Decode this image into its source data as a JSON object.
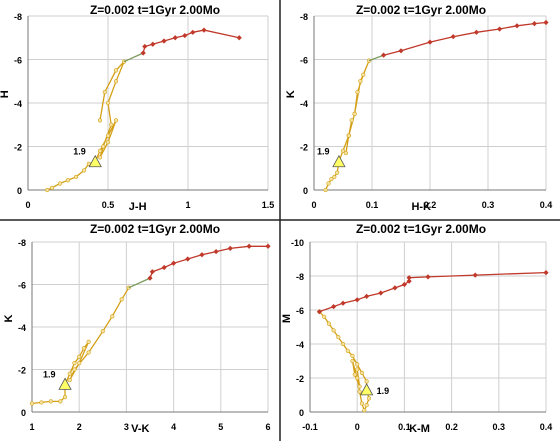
{
  "colors": {
    "track": "#d4a017",
    "track_fill": "#f4e3a0",
    "red": "#c0392b",
    "green": "#7a9a5a",
    "marker": "#ffff66"
  },
  "chart_data": [
    {
      "type": "line",
      "title": "Z=0.002  t=1Gyr  2.00Mo",
      "xlabel": "J-H",
      "ylabel": "H",
      "xlim": [
        0,
        1.5
      ],
      "ylim": [
        0,
        -8
      ],
      "xticks": [
        "0",
        "0.5",
        "1",
        "1.5"
      ],
      "yticks": [
        "0",
        "-2",
        "-4",
        "-6",
        "-8"
      ],
      "annotation": "1.9",
      "marker": [
        0.42,
        -1.3
      ],
      "series": [
        {
          "color": "track",
          "points": [
            [
              0.12,
              0
            ],
            [
              0.15,
              -0.1
            ],
            [
              0.2,
              -0.3
            ],
            [
              0.25,
              -0.45
            ],
            [
              0.3,
              -0.6
            ],
            [
              0.35,
              -0.9
            ],
            [
              0.38,
              -1.2
            ],
            [
              0.42,
              -1.3
            ],
            [
              0.45,
              -1.8
            ],
            [
              0.5,
              -2.5
            ],
            [
              0.55,
              -3.2
            ],
            [
              0.5,
              -2.2
            ],
            [
              0.45,
              -1.5
            ],
            [
              0.47,
              -2.0
            ],
            [
              0.52,
              -3.0
            ],
            [
              0.5,
              -4.0
            ],
            [
              0.55,
              -5.0
            ],
            [
              0.6,
              -5.9
            ],
            [
              0.55,
              -5.5
            ],
            [
              0.48,
              -4.5
            ],
            [
              0.45,
              -3.2
            ]
          ]
        },
        {
          "color": "green",
          "points": [
            [
              0.6,
              -5.9
            ],
            [
              0.72,
              -6.3
            ]
          ]
        },
        {
          "color": "red",
          "points": [
            [
              0.72,
              -6.3
            ],
            [
              0.73,
              -6.6
            ],
            [
              0.78,
              -6.7
            ],
            [
              0.85,
              -6.85
            ],
            [
              0.92,
              -7.0
            ],
            [
              0.98,
              -7.1
            ],
            [
              1.03,
              -7.25
            ],
            [
              1.1,
              -7.35
            ],
            [
              1.32,
              -7.0
            ]
          ]
        }
      ]
    },
    {
      "type": "line",
      "title": "Z=0.002  t=1Gyr  2.00Mo",
      "xlabel": "H-K",
      "ylabel": "K",
      "xlim": [
        0,
        0.4
      ],
      "ylim": [
        0,
        -8
      ],
      "xticks": [
        "0",
        "0.1",
        "0.2",
        "0.3",
        "0.4"
      ],
      "yticks": [
        "0",
        "-2",
        "-4",
        "-6",
        "-8"
      ],
      "annotation": "1.9",
      "marker": [
        0.043,
        -1.3
      ],
      "series": [
        {
          "color": "track",
          "points": [
            [
              0.02,
              0
            ],
            [
              0.025,
              -0.3
            ],
            [
              0.03,
              -0.5
            ],
            [
              0.035,
              -0.6
            ],
            [
              0.04,
              -0.8
            ],
            [
              0.043,
              -1.3
            ],
            [
              0.05,
              -1.8
            ],
            [
              0.06,
              -2.5
            ],
            [
              0.065,
              -3.2
            ],
            [
              0.06,
              -2.5
            ],
            [
              0.055,
              -1.7
            ],
            [
              0.06,
              -2.5
            ],
            [
              0.07,
              -3.5
            ],
            [
              0.075,
              -4.5
            ],
            [
              0.085,
              -5.3
            ],
            [
              0.095,
              -5.95
            ],
            [
              0.08,
              -5.0
            ],
            [
              0.07,
              -3.5
            ]
          ]
        },
        {
          "color": "green",
          "points": [
            [
              0.095,
              -5.95
            ],
            [
              0.12,
              -6.2
            ]
          ]
        },
        {
          "color": "red",
          "points": [
            [
              0.12,
              -6.2
            ],
            [
              0.15,
              -6.4
            ],
            [
              0.2,
              -6.8
            ],
            [
              0.24,
              -7.05
            ],
            [
              0.28,
              -7.25
            ],
            [
              0.32,
              -7.4
            ],
            [
              0.35,
              -7.55
            ],
            [
              0.38,
              -7.65
            ],
            [
              0.4,
              -7.7
            ]
          ]
        }
      ]
    },
    {
      "type": "line",
      "title": "Z=0.002  t=1Gyr  2.00Mo",
      "xlabel": "V-K",
      "ylabel": "K",
      "xlim": [
        1,
        6
      ],
      "ylim": [
        0,
        -8
      ],
      "xticks": [
        "1",
        "2",
        "3",
        "4",
        "5",
        "6"
      ],
      "yticks": [
        "0",
        "-2",
        "-4",
        "-6",
        "-8"
      ],
      "annotation": "1.9",
      "marker": [
        1.7,
        -1.3
      ],
      "series": [
        {
          "color": "track",
          "points": [
            [
              1.0,
              -0.4
            ],
            [
              1.2,
              -0.45
            ],
            [
              1.4,
              -0.5
            ],
            [
              1.6,
              -0.5
            ],
            [
              1.7,
              -0.7
            ],
            [
              1.7,
              -1.3
            ],
            [
              1.8,
              -1.8
            ],
            [
              1.9,
              -2.3
            ],
            [
              2.0,
              -2.6
            ],
            [
              2.1,
              -3.0
            ],
            [
              2.2,
              -3.3
            ],
            [
              2.0,
              -2.3
            ],
            [
              1.8,
              -1.5
            ],
            [
              1.9,
              -2.0
            ],
            [
              2.2,
              -2.8
            ],
            [
              2.5,
              -3.8
            ],
            [
              2.7,
              -4.5
            ],
            [
              2.9,
              -5.3
            ],
            [
              3.05,
              -5.85
            ]
          ]
        },
        {
          "color": "green",
          "points": [
            [
              3.05,
              -5.85
            ],
            [
              3.5,
              -6.3
            ]
          ]
        },
        {
          "color": "red",
          "points": [
            [
              3.5,
              -6.3
            ],
            [
              3.55,
              -6.6
            ],
            [
              3.8,
              -6.8
            ],
            [
              4.0,
              -7.0
            ],
            [
              4.3,
              -7.2
            ],
            [
              4.6,
              -7.4
            ],
            [
              4.9,
              -7.55
            ],
            [
              5.2,
              -7.7
            ],
            [
              5.6,
              -7.8
            ],
            [
              6.0,
              -7.8
            ]
          ]
        }
      ]
    },
    {
      "type": "line",
      "title": "Z=0.002  t=1Gyr  2.00Mo",
      "xlabel": "K-M",
      "ylabel": "M",
      "xlim": [
        -0.1,
        0.4
      ],
      "ylim": [
        0,
        -10
      ],
      "xticks": [
        "-0.1",
        "0",
        "0.1",
        "0.2",
        "0.3",
        "0.4"
      ],
      "yticks": [
        "0",
        "-2",
        "-4",
        "-6",
        "-8",
        "-10"
      ],
      "annotation": "1.9",
      "marker": [
        0.02,
        -1.3
      ],
      "series": [
        {
          "color": "track",
          "points": [
            [
              -0.08,
              -5.9
            ],
            [
              -0.07,
              -5.6
            ],
            [
              -0.06,
              -5.2
            ],
            [
              -0.05,
              -4.8
            ],
            [
              -0.04,
              -4.4
            ],
            [
              -0.03,
              -4.0
            ],
            [
              -0.02,
              -3.6
            ],
            [
              -0.01,
              -3.3
            ],
            [
              0.0,
              -2.8
            ],
            [
              0.01,
              -2.3
            ],
            [
              0.02,
              -1.8
            ],
            [
              0.02,
              -1.3
            ],
            [
              0.025,
              -0.8
            ],
            [
              0.02,
              -0.4
            ],
            [
              0.015,
              -0.1
            ],
            [
              0.01,
              -0.5
            ],
            [
              0.005,
              -1.2
            ],
            [
              0.0,
              -2.0
            ],
            [
              -0.01,
              -3.0
            ],
            [
              -0.005,
              -2.2
            ],
            [
              0.005,
              -1.5
            ],
            [
              0.0,
              -2.5
            ]
          ]
        },
        {
          "color": "red",
          "points": [
            [
              -0.08,
              -5.9
            ],
            [
              -0.05,
              -6.2
            ],
            [
              -0.03,
              -6.4
            ],
            [
              0.0,
              -6.6
            ],
            [
              0.02,
              -6.8
            ],
            [
              0.05,
              -7.0
            ],
            [
              0.08,
              -7.3
            ],
            [
              0.1,
              -7.5
            ],
            [
              0.11,
              -7.7
            ],
            [
              0.11,
              -7.9
            ],
            [
              0.15,
              -7.95
            ],
            [
              0.25,
              -8.05
            ],
            [
              0.4,
              -8.2
            ]
          ]
        }
      ]
    }
  ]
}
